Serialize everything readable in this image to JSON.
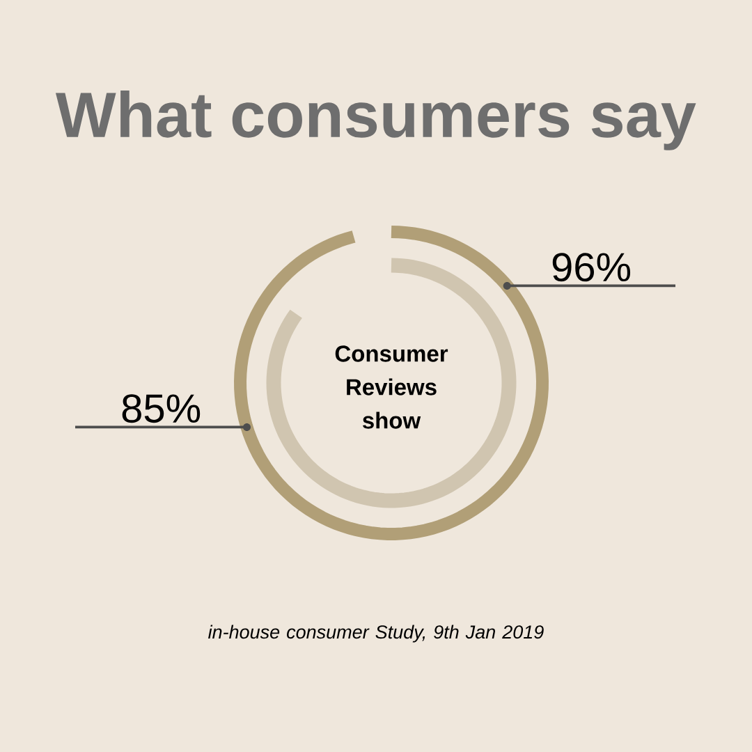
{
  "chart_data": {
    "type": "other",
    "title": "What consumers say",
    "categories": [
      null,
      null
    ],
    "values": [
      96,
      85
    ],
    "value_labels": [
      "96%",
      "85%"
    ],
    "colors": [
      "#b19f77",
      "#d0c5b0"
    ],
    "annotations": [
      "Consumer Reviews show",
      "in-house consumer Study, 9th Jan 2019"
    ]
  }
}
